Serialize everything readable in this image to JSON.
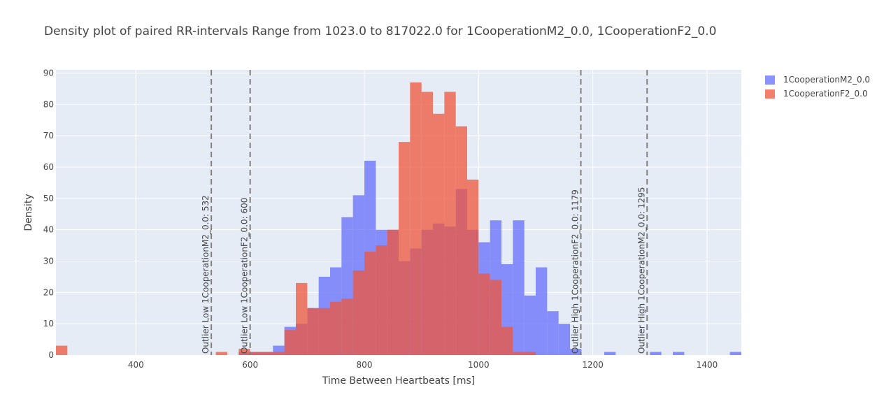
{
  "chart_data": {
    "type": "bar",
    "title": "Density plot of paired RR-intervals Range from 1023.0 to 817022.0 for 1CooperationM2_0.0, 1CooperationF2_0.0",
    "xlabel": "Time Between Heartbeats [ms]",
    "ylabel": "Density",
    "xlim": [
      260,
      1460
    ],
    "ylim": [
      0,
      91
    ],
    "bin_width": 20,
    "xticks": [
      400,
      600,
      800,
      1000,
      1200,
      1400
    ],
    "yticks": [
      0,
      10,
      20,
      30,
      40,
      50,
      60,
      70,
      80,
      90
    ],
    "grid": true,
    "legend_position": "top-right",
    "series": [
      {
        "name": "1CooperationM2_0.0",
        "color": "#636efa",
        "bins": [
          {
            "x": 590,
            "y": 1
          },
          {
            "x": 610,
            "y": 1
          },
          {
            "x": 630,
            "y": 1
          },
          {
            "x": 650,
            "y": 3
          },
          {
            "x": 670,
            "y": 9
          },
          {
            "x": 690,
            "y": 10
          },
          {
            "x": 710,
            "y": 15
          },
          {
            "x": 730,
            "y": 25
          },
          {
            "x": 750,
            "y": 28
          },
          {
            "x": 770,
            "y": 44
          },
          {
            "x": 790,
            "y": 51
          },
          {
            "x": 810,
            "y": 62
          },
          {
            "x": 830,
            "y": 40
          },
          {
            "x": 850,
            "y": 40
          },
          {
            "x": 870,
            "y": 30
          },
          {
            "x": 890,
            "y": 34
          },
          {
            "x": 910,
            "y": 40
          },
          {
            "x": 930,
            "y": 42
          },
          {
            "x": 950,
            "y": 41
          },
          {
            "x": 970,
            "y": 53
          },
          {
            "x": 990,
            "y": 40
          },
          {
            "x": 1010,
            "y": 36
          },
          {
            "x": 1030,
            "y": 43
          },
          {
            "x": 1050,
            "y": 29
          },
          {
            "x": 1070,
            "y": 43
          },
          {
            "x": 1090,
            "y": 19
          },
          {
            "x": 1110,
            "y": 28
          },
          {
            "x": 1130,
            "y": 14
          },
          {
            "x": 1150,
            "y": 10
          },
          {
            "x": 1170,
            "y": 2
          },
          {
            "x": 1230,
            "y": 1
          },
          {
            "x": 1310,
            "y": 1
          },
          {
            "x": 1350,
            "y": 1
          },
          {
            "x": 1450,
            "y": 1
          }
        ]
      },
      {
        "name": "1CooperationF2_0.0",
        "color": "#ef553b",
        "bins": [
          {
            "x": 270,
            "y": 3
          },
          {
            "x": 550,
            "y": 1
          },
          {
            "x": 590,
            "y": 2
          },
          {
            "x": 610,
            "y": 1
          },
          {
            "x": 630,
            "y": 1
          },
          {
            "x": 650,
            "y": 1
          },
          {
            "x": 670,
            "y": 8
          },
          {
            "x": 690,
            "y": 23
          },
          {
            "x": 710,
            "y": 15
          },
          {
            "x": 730,
            "y": 15
          },
          {
            "x": 750,
            "y": 17
          },
          {
            "x": 770,
            "y": 18
          },
          {
            "x": 790,
            "y": 27
          },
          {
            "x": 810,
            "y": 33
          },
          {
            "x": 830,
            "y": 35
          },
          {
            "x": 850,
            "y": 40
          },
          {
            "x": 870,
            "y": 68
          },
          {
            "x": 890,
            "y": 87
          },
          {
            "x": 910,
            "y": 84
          },
          {
            "x": 930,
            "y": 77
          },
          {
            "x": 950,
            "y": 84
          },
          {
            "x": 970,
            "y": 73
          },
          {
            "x": 990,
            "y": 56
          },
          {
            "x": 1010,
            "y": 26
          },
          {
            "x": 1030,
            "y": 24
          },
          {
            "x": 1050,
            "y": 9
          },
          {
            "x": 1070,
            "y": 1
          },
          {
            "x": 1090,
            "y": 1
          }
        ]
      }
    ],
    "vertical_lines": [
      {
        "x": 532,
        "label": "Outlier Low 1CooperationM2_0.0: 532"
      },
      {
        "x": 600,
        "label": "Outlier Low 1CooperationF2_0.0: 600"
      },
      {
        "x": 1179,
        "label": "Outlier High 1CooperationF2_0.0: 1179"
      },
      {
        "x": 1295,
        "label": "Outlier High 1CooperationM2_0.0: 1295"
      }
    ]
  }
}
